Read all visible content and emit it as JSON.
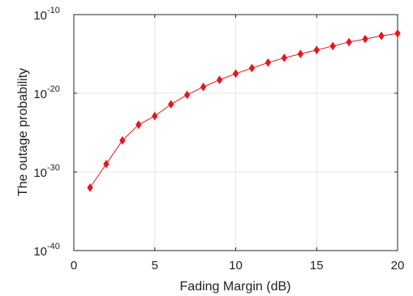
{
  "chart_data": {
    "type": "line",
    "title": "",
    "xlabel": "Fading Margin (dB)",
    "ylabel": "The outage probability",
    "xlim": [
      0,
      20
    ],
    "ylim_log10": [
      -40,
      -10
    ],
    "y_scale": "log",
    "x_ticks": [
      "0",
      "5",
      "10",
      "15",
      "20"
    ],
    "y_ticks": [
      {
        "base": "10",
        "exp": "-40"
      },
      {
        "base": "10",
        "exp": "-30"
      },
      {
        "base": "10",
        "exp": "-20"
      },
      {
        "base": "10",
        "exp": "-10"
      }
    ],
    "grid": true,
    "series": [
      {
        "color": "#e8151b",
        "marker": "diamond",
        "x": [
          1,
          2,
          3,
          4,
          5,
          6,
          7,
          8,
          9,
          10,
          11,
          12,
          13,
          14,
          15,
          16,
          17,
          18,
          19,
          20
        ],
        "y": [
          "1e-32",
          "1e-29",
          "1e-26",
          "1e-24",
          "1e-22.9",
          "1e-21.4",
          "1e-20.2",
          "1e-19.2",
          "1e-18.3",
          "1e-17.5",
          "1e-16.8",
          "1e-16.1",
          "1e-15.5",
          "1e-15",
          "1e-14.5",
          "1e-14",
          "1e-13.5",
          "1e-13.1",
          "1e-12.7",
          "1e-12.4"
        ]
      }
    ]
  }
}
